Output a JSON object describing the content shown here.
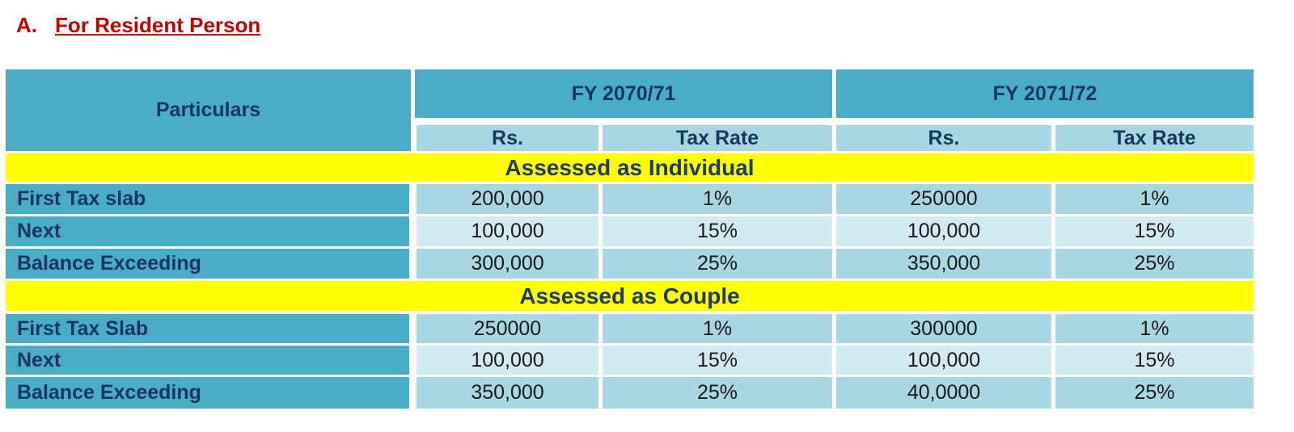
{
  "heading": {
    "letter": "A.",
    "title": "For Resident  Person"
  },
  "table": {
    "particulars_header": "Particulars",
    "fy_headers": [
      "FY 2070/71",
      "FY 2071/72"
    ],
    "sub_headers": [
      "Rs.",
      "Tax Rate",
      "Rs.",
      "Tax Rate"
    ],
    "sections": [
      {
        "title": "Assessed as Individual",
        "rows": [
          {
            "label": "First Tax slab",
            "cells": [
              "200,000",
              "1%",
              "250000",
              "1%"
            ]
          },
          {
            "label": "Next",
            "cells": [
              "100,000",
              "15%",
              "100,000",
              "15%"
            ]
          },
          {
            "label": "Balance Exceeding",
            "cells": [
              "300,000",
              "25%",
              "350,000",
              "25%"
            ]
          }
        ]
      },
      {
        "title": "Assessed as Couple",
        "rows": [
          {
            "label": "First Tax Slab",
            "cells": [
              "250000",
              "1%",
              "300000",
              "1%"
            ]
          },
          {
            "label": "Next",
            "cells": [
              "100,000",
              "15%",
              "100,000",
              "15%"
            ]
          },
          {
            "label": "Balance Exceeding",
            "cells": [
              "350,000",
              "25%",
              "40,0000",
              "25%"
            ]
          }
        ]
      }
    ]
  },
  "colors": {
    "header_teal": "#4bacc6",
    "cell_dark": "#a9d6e3",
    "cell_light": "#d2eaf2",
    "band_yellow": "#ffff00",
    "heading_red": "#c00000",
    "text_navy": "#17375e"
  }
}
